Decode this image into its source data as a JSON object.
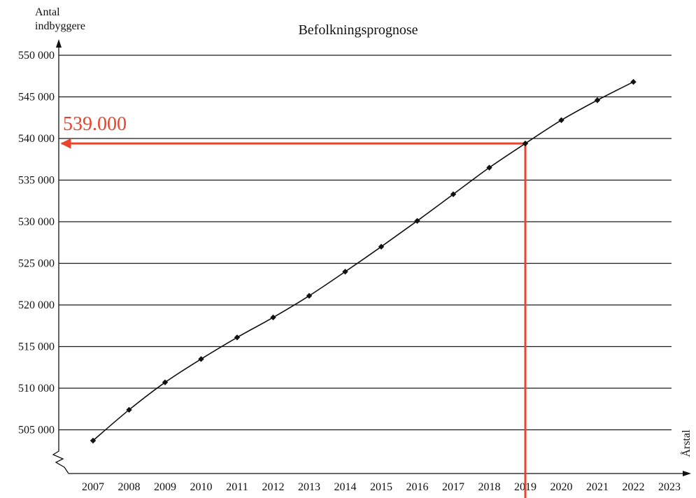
{
  "chart_data": {
    "type": "line",
    "title": "Befolkningsprognose",
    "ylabel_lines": [
      "Antal",
      "indbyggere"
    ],
    "xlabel": "Årstal",
    "x": [
      2007,
      2008,
      2009,
      2010,
      2011,
      2012,
      2013,
      2014,
      2015,
      2016,
      2017,
      2018,
      2019,
      2020,
      2021,
      2022
    ],
    "x_tick_labels": [
      "2007",
      "2008",
      "2009",
      "2010",
      "2011",
      "2012",
      "2013",
      "2014",
      "2015",
      "2016",
      "2017",
      "2018",
      "2019",
      "2020",
      "2021",
      "2022",
      "2023"
    ],
    "y_tick_labels": [
      "505 000",
      "510 000",
      "515 000",
      "520 000",
      "525 000",
      "530 000",
      "535 000",
      "540 000",
      "545 000",
      "550 000"
    ],
    "y_ticks": [
      505000,
      510000,
      515000,
      520000,
      525000,
      530000,
      535000,
      540000,
      545000,
      550000
    ],
    "series": [
      {
        "values": [
          503700,
          507400,
          510700,
          513500,
          516100,
          518500,
          521100,
          524000,
          527000,
          530100,
          533300,
          536500,
          539400,
          542200,
          544600,
          546800
        ]
      }
    ],
    "ylim": [
      500000,
      550000
    ],
    "xlim": [
      2007,
      2023
    ],
    "grid": "horizontal",
    "y_axis_break": true,
    "annotation": {
      "label": "539.000",
      "x": 2019,
      "y": 539400,
      "color": "#e8442e"
    },
    "line_color": "#111111",
    "marker": "diamond"
  }
}
